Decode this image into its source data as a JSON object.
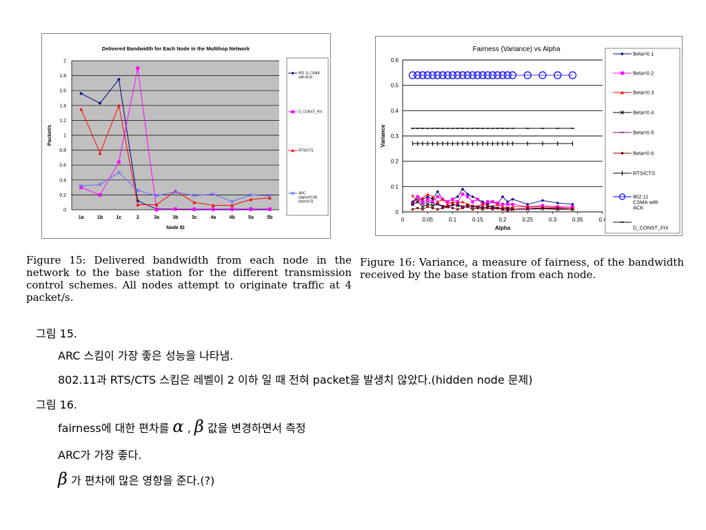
{
  "chart_data": [
    {
      "type": "line",
      "title": "Delivered Bandwidth for Each Node in the Multihop Network",
      "xlabel": "Node ID",
      "ylabel": "Packet/s",
      "categories": [
        "1a",
        "1b",
        "1c",
        "2",
        "3a",
        "3b",
        "3c",
        "4a",
        "4b",
        "5a",
        "5b"
      ],
      "ylim": [
        0,
        2
      ],
      "yticks": [
        "0",
        "0.2",
        "0.4",
        "0.6",
        "0.8",
        "1",
        "1.2",
        "1.4",
        "1.6",
        "1.8",
        "2"
      ],
      "grid": true,
      "legend_position": "right",
      "series": [
        {
          "name": "802.11 CSMA with ACK",
          "color": "#000080",
          "marker": "diamond",
          "values": [
            1.56,
            1.43,
            1.75,
            0.12,
            0.01,
            0.01,
            0.0,
            0.0,
            0.0,
            0.0,
            0.0
          ]
        },
        {
          "name": "D_CONST_FIX",
          "color": "#ff00ff",
          "marker": "square",
          "values": [
            0.3,
            0.2,
            0.64,
            1.9,
            0.0,
            0.01,
            0.01,
            0.01,
            0.01,
            0.01,
            0.01
          ]
        },
        {
          "name": "RTS/CTS",
          "color": "#ff0000",
          "marker": "triangle",
          "values": [
            1.35,
            0.76,
            1.4,
            0.07,
            0.07,
            0.25,
            0.1,
            0.06,
            0.06,
            0.14,
            0.16
          ]
        },
        {
          "name": "ARC (alpha=0.08, beta=0.5)",
          "color": "#6666ff",
          "marker": "x",
          "values": [
            0.32,
            0.34,
            0.5,
            0.26,
            0.19,
            0.24,
            0.19,
            0.21,
            0.11,
            0.2,
            0.19
          ]
        }
      ]
    },
    {
      "type": "line",
      "title": "Fairness (Variance) vs Alpha",
      "xlabel": "Alpha",
      "ylabel": "Variance",
      "xlim": [
        0,
        0.4
      ],
      "ylim": [
        0,
        0.6
      ],
      "xticks": [
        "0",
        "0.05",
        "0.1",
        "0.15",
        "0.2",
        "0.25",
        "0.3",
        "0.35",
        "0.4"
      ],
      "yticks": [
        "0",
        "0.1",
        "0.2",
        "0.3",
        "0.4",
        "0.5",
        "0.6"
      ],
      "grid": true,
      "legend_position": "right",
      "x": [
        0.02,
        0.03,
        0.04,
        0.05,
        0.06,
        0.07,
        0.08,
        0.09,
        0.1,
        0.11,
        0.12,
        0.13,
        0.14,
        0.15,
        0.16,
        0.17,
        0.18,
        0.19,
        0.2,
        0.21,
        0.22,
        0.25,
        0.28,
        0.31,
        0.34
      ],
      "series": [
        {
          "name": "Beta=0.1",
          "color": "#000080",
          "marker": "diamond",
          "values": [
            0.04,
            0.06,
            0.05,
            0.06,
            0.05,
            0.08,
            0.05,
            0.04,
            0.05,
            0.06,
            0.09,
            0.07,
            0.06,
            0.05,
            0.04,
            0.03,
            0.04,
            0.03,
            0.06,
            0.04,
            0.05,
            0.03,
            0.045,
            0.035,
            0.03
          ]
        },
        {
          "name": "Beta=0.2",
          "color": "#ff00ff",
          "marker": "square",
          "values": [
            0.03,
            0.06,
            0.04,
            0.05,
            0.04,
            0.06,
            0.05,
            0.04,
            0.05,
            0.04,
            0.07,
            0.06,
            0.04,
            0.05,
            0.03,
            0.04,
            0.04,
            0.035,
            0.03,
            0.03,
            0.03,
            0.02,
            0.025,
            0.02,
            0.02
          ]
        },
        {
          "name": "Beta=0.3",
          "color": "#ff0000",
          "marker": "triangle",
          "values": [
            0.065,
            0.04,
            0.055,
            0.07,
            0.06,
            0.04,
            0.05,
            0.03,
            0.04,
            0.035,
            0.04,
            0.03,
            0.025,
            0.02,
            0.03,
            0.025,
            0.02,
            0.03,
            0.02,
            0.015,
            0.02,
            0.02,
            0.02,
            0.018,
            0.015
          ]
        },
        {
          "name": "Beta=0.4",
          "color": "#000000",
          "marker": "x",
          "values": [
            0.03,
            0.04,
            0.02,
            0.03,
            0.025,
            0.03,
            0.02,
            0.02,
            0.03,
            0.025,
            0.02,
            0.025,
            0.02,
            0.02,
            0.015,
            0.02,
            0.02,
            0.015,
            0.01,
            0.015,
            0.01,
            0.01,
            0.012,
            0.01,
            0.01
          ]
        },
        {
          "name": "Beta=0.5",
          "color": "#800080",
          "marker": "dash",
          "values": [
            0.04,
            0.05,
            0.03,
            0.04,
            0.035,
            0.03,
            0.025,
            0.02,
            0.025,
            0.03,
            0.02,
            0.025,
            0.02,
            0.02,
            0.02,
            0.015,
            0.015,
            0.015,
            0.015,
            0.01,
            0.01,
            0.01,
            0.015,
            0.015,
            0.01
          ]
        },
        {
          "name": "Beta=0.6",
          "color": "#800000",
          "marker": "circle-filled",
          "values": [
            0.01,
            0.015,
            0.01,
            0.02,
            0.015,
            0.01,
            0.015,
            0.02,
            0.015,
            0.01,
            0.015,
            0.02,
            0.01,
            0.015,
            0.01,
            0.015,
            0.01,
            0.015,
            0.01,
            0.005,
            0.01,
            0.015,
            0.015,
            0.012,
            0.01
          ]
        },
        {
          "name": "RTS/CTS",
          "color": "#000000",
          "marker": "plus",
          "values": [
            0.27,
            0.27,
            0.27,
            0.27,
            0.27,
            0.27,
            0.27,
            0.27,
            0.27,
            0.27,
            0.27,
            0.27,
            0.27,
            0.27,
            0.27,
            0.27,
            0.27,
            0.27,
            0.27,
            0.27,
            0.27,
            0.27,
            0.27,
            0.27,
            0.27
          ]
        },
        {
          "name": "802.11 CSMA with ACK",
          "color": "#0000ff",
          "marker": "circle-open",
          "values": [
            0.54,
            0.54,
            0.54,
            0.54,
            0.54,
            0.54,
            0.54,
            0.54,
            0.54,
            0.54,
            0.54,
            0.54,
            0.54,
            0.54,
            0.54,
            0.54,
            0.54,
            0.54,
            0.54,
            0.54,
            0.54,
            0.54,
            0.54,
            0.54,
            0.54
          ]
        },
        {
          "name": "D_CONST_FIX",
          "color": "#000000",
          "marker": "dash",
          "values": [
            0.33,
            0.33,
            0.33,
            0.33,
            0.33,
            0.33,
            0.33,
            0.33,
            0.33,
            0.33,
            0.33,
            0.33,
            0.33,
            0.33,
            0.33,
            0.33,
            0.33,
            0.33,
            0.33,
            0.33,
            0.33,
            0.33,
            0.33,
            0.33,
            0.33
          ]
        }
      ]
    }
  ],
  "captions": {
    "fig15": "Figure 15: Delivered bandwidth from each node in the network to the base station for the different transmission control schemes. All nodes attempt to originate traffic at 4 packet/s.",
    "fig16": "Figure 16: Variance, a measure of fairness, of the bandwidth received by the base station from each node."
  },
  "notes": {
    "fig15_heading": "그림 15.",
    "fig15_line1": "ARC 스킴이 가장 좋은 성능을 나타냄.",
    "fig15_line2": "802.11과 RTS/CTS 스킴은 레벨이 2 이하 일 때 전혀 packet을 발생치 않았다.(hidden node 문제)",
    "fig16_heading": "그림 16.",
    "fig16_line1_a": "fairness에 대한 편차를",
    "alpha_symbol": "α",
    "comma": ",",
    "beta_symbol": "β",
    "fig16_line1_b": "값을 변경하면서  측정",
    "fig16_line2": "ARC가 가장 좋다.",
    "fig16_line3_beta": "β",
    "fig16_line3": "가 편차에 많은 영향을 준다.(?)"
  }
}
